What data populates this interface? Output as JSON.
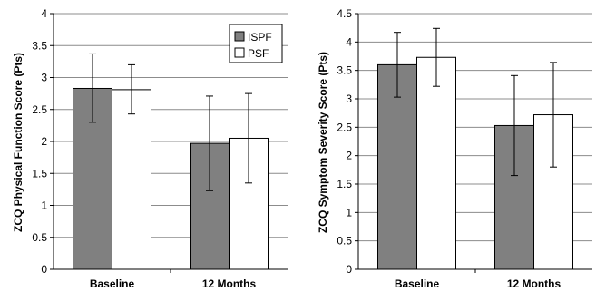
{
  "chart_data": [
    {
      "type": "bar",
      "categories": [
        "Baseline",
        "12 Months"
      ],
      "ylabel": "ZCQ Physical Function Score (Pts)",
      "ylim": [
        0,
        4
      ],
      "yticks": [
        "0",
        "0.5",
        "1",
        "1.5",
        "2",
        "2.5",
        "3",
        "3.5",
        "4"
      ],
      "ytick_values": [
        0,
        0.5,
        1,
        1.5,
        2,
        2.5,
        3,
        3.5,
        4
      ],
      "grid": true,
      "legend": "top-right",
      "series": [
        {
          "name": "ISPF",
          "color": "#808080",
          "values": [
            2.83,
            1.97
          ],
          "err_low": [
            2.3,
            1.23
          ],
          "err_high": [
            3.37,
            2.71
          ]
        },
        {
          "name": "PSF",
          "color": "#ffffff",
          "values": [
            2.81,
            2.05
          ],
          "err_low": [
            2.43,
            1.35
          ],
          "err_high": [
            3.2,
            2.75
          ]
        }
      ]
    },
    {
      "type": "bar",
      "categories": [
        "Baseline",
        "12 Months"
      ],
      "ylabel": "ZCQ Symptom Severity Score (Pts)",
      "ylim": [
        0,
        4.5
      ],
      "yticks": [
        "0",
        "0.5",
        "1",
        "1.5",
        "2",
        "2.5",
        "3",
        "3.5",
        "4",
        "4.5"
      ],
      "ytick_values": [
        0,
        0.5,
        1,
        1.5,
        2,
        2.5,
        3,
        3.5,
        4,
        4.5
      ],
      "grid": true,
      "legend": "none",
      "series": [
        {
          "name": "ISPF",
          "color": "#808080",
          "values": [
            3.6,
            2.53
          ],
          "err_low": [
            3.03,
            1.65
          ],
          "err_high": [
            4.17,
            3.41
          ]
        },
        {
          "name": "PSF",
          "color": "#ffffff",
          "values": [
            3.73,
            2.72
          ],
          "err_low": [
            3.22,
            1.8
          ],
          "err_high": [
            4.24,
            3.64
          ]
        }
      ]
    }
  ]
}
